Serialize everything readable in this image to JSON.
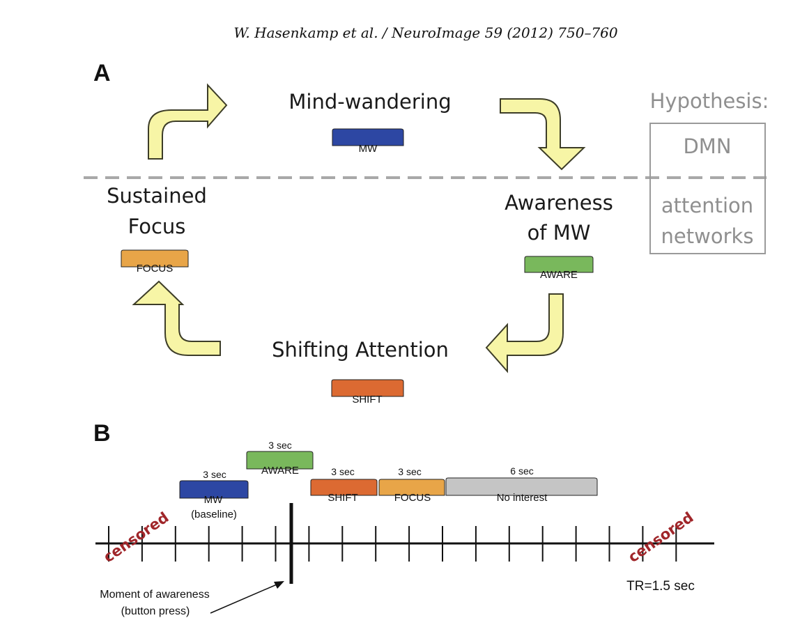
{
  "header": {
    "citation": "W. Hasenkamp et al. / NeuroImage 59 (2012) 750–760"
  },
  "panel_a": {
    "label": "A",
    "stages": {
      "mind_wandering": "Mind-wandering",
      "awareness_line1": "Awareness",
      "awareness_line2": "of MW",
      "shifting": "Shifting Attention",
      "sustained_line1": "Sustained",
      "sustained_line2": "Focus"
    },
    "blocks": {
      "mw": "MW",
      "aware": "AWARE",
      "shift": "SHIFT",
      "focus": "FOCUS"
    },
    "hypothesis": {
      "title": "Hypothesis:",
      "dmn": "DMN",
      "attention_line1": "attention",
      "attention_line2": "networks"
    }
  },
  "panel_b": {
    "label": "B",
    "durations": {
      "mw": "3 sec",
      "aware": "3 sec",
      "shift": "3 sec",
      "focus": "3 sec",
      "no_interest": "6 sec"
    },
    "blocks": {
      "mw": "MW",
      "mw_sub": "(baseline)",
      "aware": "AWARE",
      "shift": "SHIFT",
      "focus": "FOCUS",
      "no_interest": "No interest"
    },
    "censored_left": "censored",
    "censored_right": "censored",
    "moment_line1": "Moment of awareness",
    "moment_line2": "(button press)",
    "tr": "TR=1.5 sec"
  },
  "colors": {
    "mw": "#2d47a3",
    "aware": "#79b85c",
    "shift": "#dc6a32",
    "focus": "#e8a548",
    "no_interest": "#c5c5c5",
    "arrow_fill": "#f7f5a6",
    "arrow_stroke": "#3d3d28",
    "censored": "#a0262a",
    "hypothesis_gray": "#8f8f8f"
  }
}
